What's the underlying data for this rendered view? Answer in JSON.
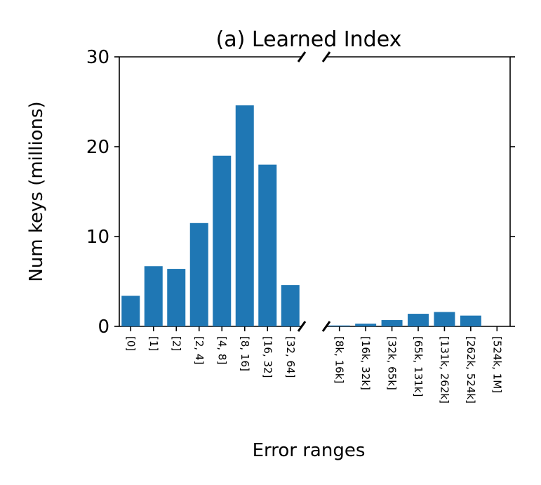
{
  "chart_data": {
    "type": "bar",
    "title": "(a) Learned Index",
    "xlabel": "Error ranges",
    "ylabel": "Num keys (millions)",
    "color": "#1f77b4",
    "ylim": [
      0,
      30
    ],
    "yticks": [
      0,
      10,
      20,
      30
    ],
    "panels": [
      {
        "categories": [
          "[0]",
          "[1]",
          "[2]",
          "[2, 4]",
          "[4, 8]",
          "[8, 16]",
          "[16, 32]",
          "[32, 64]"
        ],
        "values": [
          3.4,
          6.7,
          6.4,
          11.5,
          19.0,
          24.6,
          18.0,
          4.6
        ]
      },
      {
        "categories": [
          "[8k, 16k]",
          "[16k, 32k]",
          "[32k, 65k]",
          "[65k, 131k]",
          "[131k, 262k]",
          "[262k, 524k]",
          "[524k, 1M]"
        ],
        "values": [
          0.1,
          0.3,
          0.7,
          1.4,
          1.6,
          1.2,
          0
        ]
      }
    ]
  }
}
